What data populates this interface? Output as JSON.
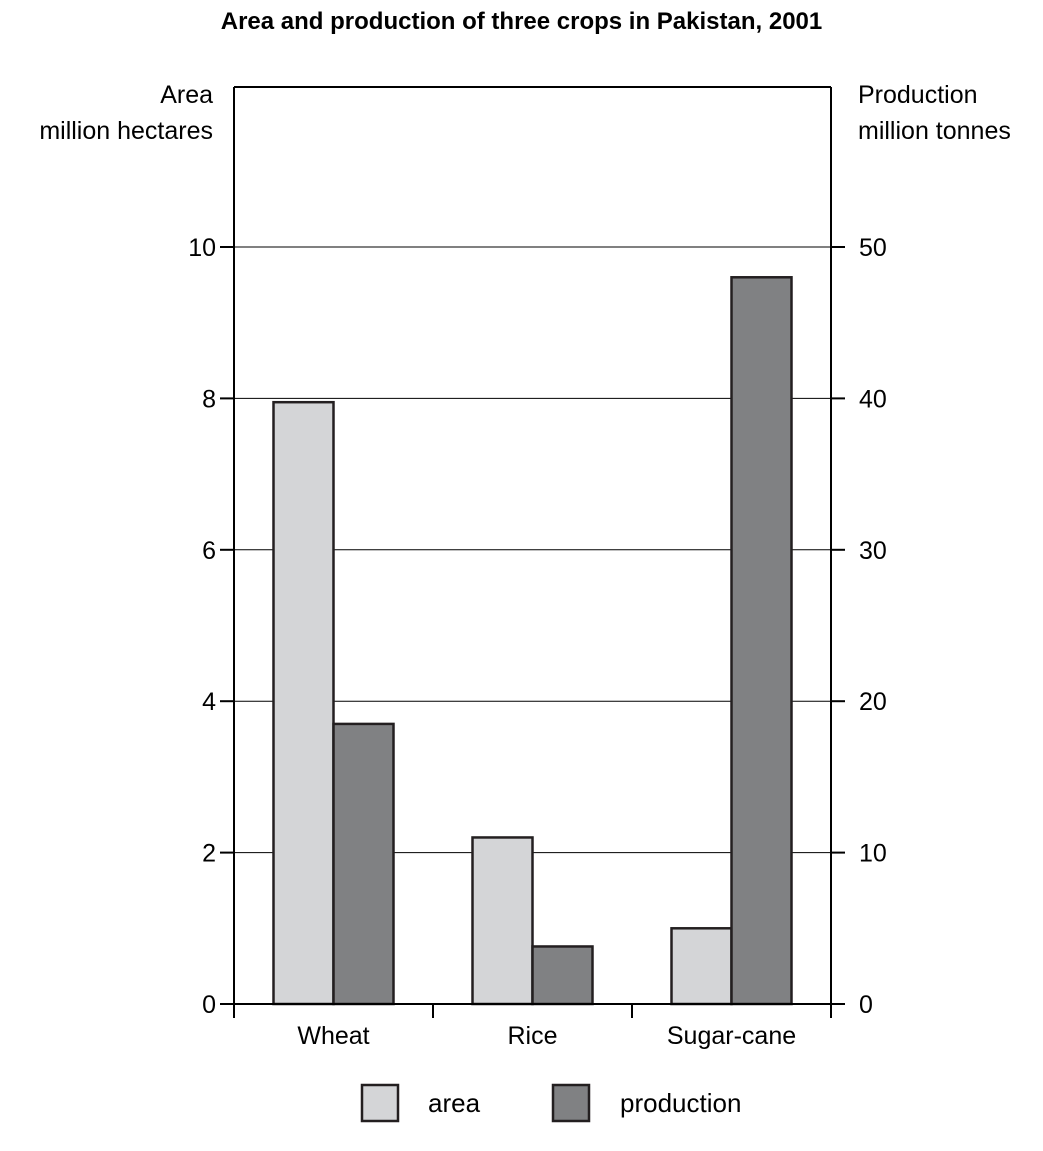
{
  "chart_data": {
    "type": "bar",
    "title": "Area and production of three crops in Pakistan, 2001",
    "categories": [
      "Wheat",
      "Rice",
      "Sugar-cane"
    ],
    "y_left": {
      "label_line1": "Area",
      "label_line2": "million hectares",
      "ylim": [
        0,
        10
      ],
      "ticks": [
        0,
        2,
        4,
        6,
        8,
        10
      ]
    },
    "y_right": {
      "label_line1": "Production",
      "label_line2": "million tonnes",
      "ylim": [
        0,
        50
      ],
      "ticks": [
        0,
        10,
        20,
        30,
        40,
        50
      ]
    },
    "series": [
      {
        "name": "area",
        "axis": "left",
        "color": "#d4d5d7",
        "values": [
          7.95,
          2.2,
          1.0
        ]
      },
      {
        "name": "production",
        "axis": "right",
        "color": "#808183",
        "values": [
          18.5,
          3.8,
          48.0
        ]
      }
    ],
    "grid": true,
    "legend_position": "bottom-center"
  }
}
